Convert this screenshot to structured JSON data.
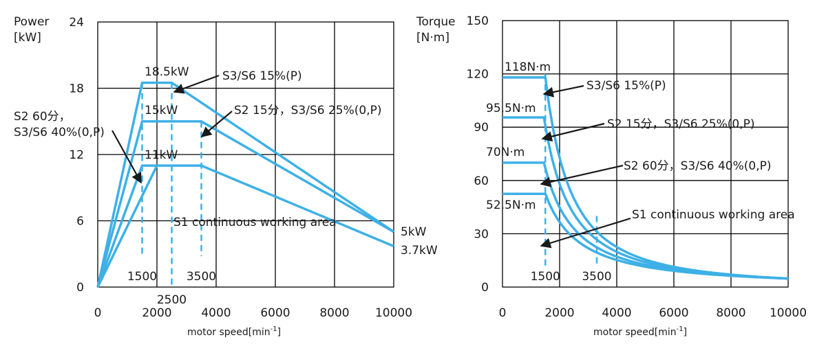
{
  "chart_data": [
    {
      "type": "line",
      "ylabel": "Power",
      "yunit": "[kW]",
      "xlabel": "motor speed[min",
      "xlabel_sup": "-1",
      "xlim": [
        0,
        10000
      ],
      "ylim": [
        0,
        24
      ],
      "xticks": [
        "0",
        "2000",
        "4000",
        "6000",
        "8000",
        "10000"
      ],
      "yticks": [
        "0",
        "6",
        "12",
        "18",
        "24"
      ],
      "grid": true,
      "series": [
        {
          "x": [
            0,
            1500,
            2500,
            10000
          ],
          "y": [
            0,
            18.5,
            18.5,
            5
          ]
        },
        {
          "x": [
            0,
            1500,
            3500,
            10000
          ],
          "y": [
            0,
            15,
            15,
            5
          ]
        },
        {
          "x": [
            0,
            1500,
            3500,
            10000
          ],
          "y": [
            0,
            11,
            11,
            3.7
          ]
        },
        {
          "x": [
            0,
            2000
          ],
          "y": [
            0,
            11
          ]
        }
      ],
      "marker_lines": [
        {
          "x": 1500,
          "label": "1500",
          "y_from": 2.8,
          "y_to": 18.5
        },
        {
          "x": 2500,
          "label": "2500",
          "y_from": 0,
          "y_to": 18.5
        },
        {
          "x": 3500,
          "label": "3500",
          "y_from": 2.8,
          "y_to": 15
        }
      ],
      "annotations": {
        "top": "18.5kW",
        "mid": "15kW",
        "low": "11kW",
        "s3_15": "S3/S6 15%(P)",
        "s2_15": "S2 15分，S3/S6 25%(0,P)",
        "s2_60_line1": "S2 60分，",
        "s2_60_line2": "S3/S6 40%(0,P)",
        "s1": "S1 continuous working area",
        "end_top": "5kW",
        "end_bottom": "3.7kW"
      }
    },
    {
      "type": "line",
      "ylabel": "Torque",
      "yunit": "[N·m]",
      "xlabel": "motor speed[min",
      "xlabel_sup": "-1",
      "xlim": [
        0,
        10000
      ],
      "ylim": [
        0,
        150
      ],
      "xticks": [
        "0",
        "2000",
        "4000",
        "6000",
        "8000",
        "10000"
      ],
      "yticks": [
        "0",
        "30",
        "60",
        "90",
        "120",
        "150"
      ],
      "grid": true,
      "series": [
        {
          "x_flat": [
            0,
            1500
          ],
          "y": 118,
          "x_knee": 1500,
          "x_end": 10000,
          "y_end": 4.8
        },
        {
          "x_flat": [
            0,
            1450
          ],
          "y": 95.5,
          "x_knee": 1450,
          "x_end": 10000,
          "y_end": 4.8
        },
        {
          "x_flat": [
            0,
            1450
          ],
          "y": 70,
          "x_knee": 1450,
          "x_end": 10000,
          "y_end": 4.8
        },
        {
          "x_flat": [
            0,
            1500
          ],
          "y": 52.5,
          "x_knee": 1500,
          "x_end": 10000,
          "y_end": 4.8
        }
      ],
      "marker_lines": [
        {
          "x": 1500,
          "label": "1500",
          "y_from": 11,
          "y_to": 120
        },
        {
          "x": 3300,
          "label": "3500",
          "y_from": 11,
          "y_to": 40
        }
      ],
      "annotations": {
        "t118": "118N·m",
        "t95": "95.5N·m",
        "t70": "70N·m",
        "t52": "52.5N·m",
        "s3_15": "S3/S6 15%(P)",
        "s2_15": "S2 15分，S3/S6 25%(0,P)",
        "s2_60": "S2 60分，S3/S6 40%(0,P)",
        "s1": "S1 continuous working area"
      }
    }
  ]
}
